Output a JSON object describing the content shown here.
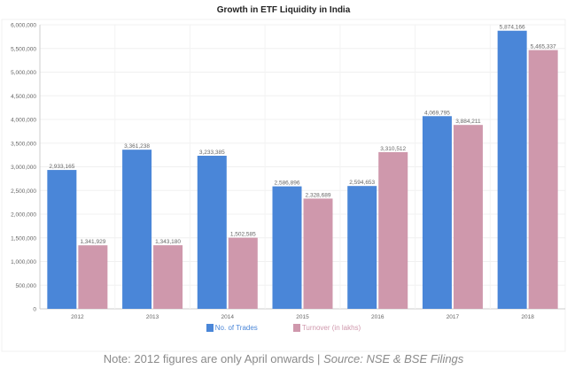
{
  "chart_data": {
    "type": "bar",
    "title": "Growth in ETF Liquidity in India",
    "categories": [
      "2012",
      "2013",
      "2014",
      "2015",
      "2016",
      "2017",
      "2018"
    ],
    "series": [
      {
        "name": "No. of Trades",
        "color": "#4a86d8",
        "values": [
          2933165,
          3361238,
          3233385,
          2586896,
          2594653,
          4069795,
          5874166
        ],
        "labels": [
          "2,933,165",
          "3,361,238",
          "3,233,385",
          "2,586,896",
          "2,594,653",
          "4,069,795",
          "5,874,166"
        ]
      },
      {
        "name": "Turnover (in lakhs)",
        "color": "#cf98ac",
        "values": [
          1341929,
          1343180,
          1502585,
          2328689,
          3310512,
          3884211,
          5465337
        ],
        "labels": [
          "1,341,929",
          "1,343,180",
          "1,502,585",
          "2,328,689",
          "3,310,512",
          "3,884,211",
          "5,465,337"
        ]
      }
    ],
    "ylim": [
      0,
      6000000
    ],
    "yticks": [
      "0",
      "500,000",
      "1,000,000",
      "1,500,000",
      "2,000,000",
      "2,500,000",
      "3,000,000",
      "3,500,000",
      "4,000,000",
      "4,500,000",
      "5,000,000",
      "5,500,000",
      "6,000,000"
    ],
    "grid": true,
    "legend": "bottom"
  },
  "note": {
    "text": "Note: 2012 figures are only April onwards | ",
    "source": "Source: NSE & BSE Filings"
  }
}
